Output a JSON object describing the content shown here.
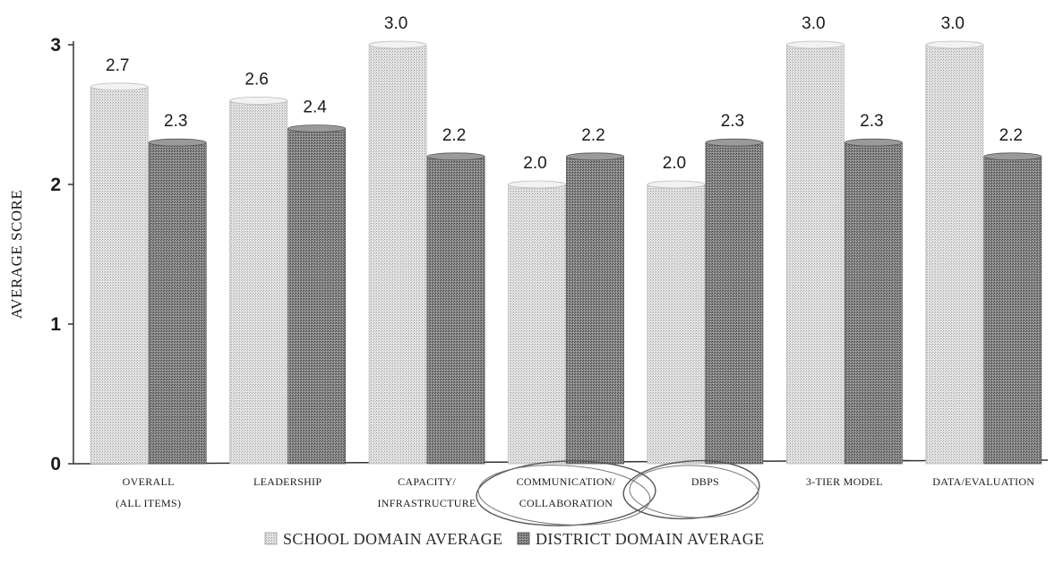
{
  "chart_data": {
    "type": "bar",
    "title": "",
    "xlabel": "",
    "ylabel": "Average Score",
    "ylim": [
      0,
      3
    ],
    "yticks": [
      "0",
      "1",
      "2",
      "3"
    ],
    "categories": [
      [
        "Overall",
        "(All items)"
      ],
      [
        "Leadership"
      ],
      [
        "Capacity/",
        "Infrastructure"
      ],
      [
        "Communication/",
        "Collaboration"
      ],
      [
        "DBPS"
      ],
      [
        "3-Tier Model"
      ],
      [
        "Data/Evaluation"
      ]
    ],
    "series": [
      {
        "name": "School Domain Average",
        "values": [
          2.7,
          2.6,
          3.0,
          2.0,
          2.0,
          3.0,
          3.0
        ],
        "labels": [
          "2.7",
          "2.6",
          "3.0",
          "2.0",
          "2.0",
          "3.0",
          "3.0"
        ],
        "color": "#dcdcdc"
      },
      {
        "name": "District Domain Average",
        "values": [
          2.3,
          2.4,
          2.2,
          2.2,
          2.3,
          2.3,
          2.2
        ],
        "labels": [
          "2.3",
          "2.4",
          "2.2",
          "2.2",
          "2.3",
          "2.3",
          "2.2"
        ],
        "color": "#7a7a7a"
      }
    ],
    "grid": false,
    "legend": "bottom",
    "annotations": "hand-drawn circles around Communication/Collaboration and DBPS"
  }
}
